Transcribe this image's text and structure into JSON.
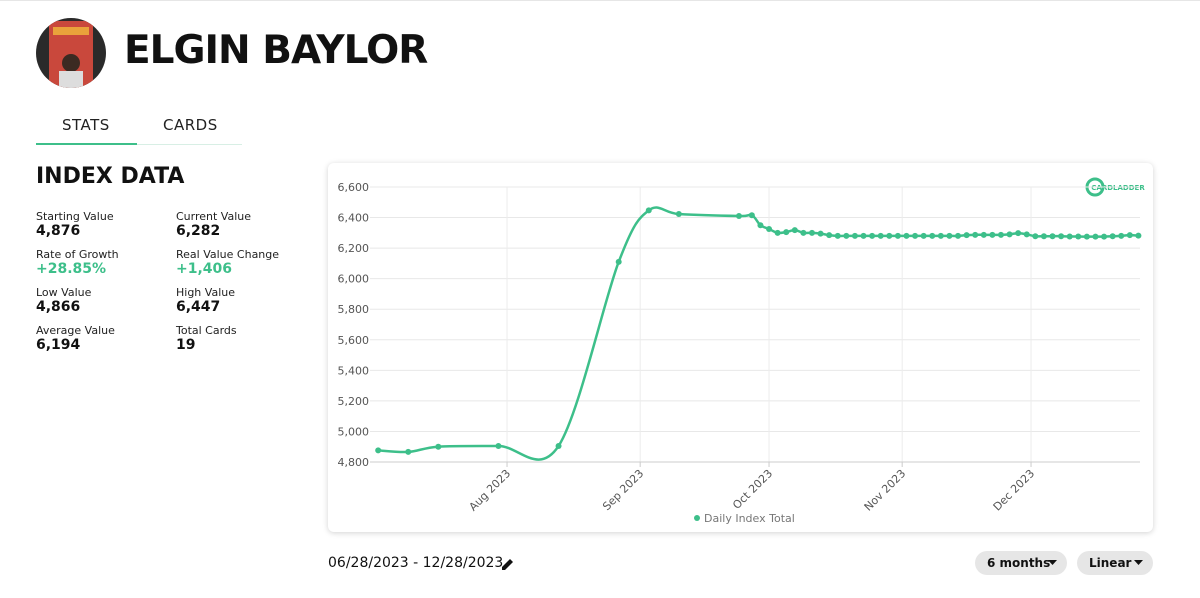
{
  "header": {
    "name": "ELGIN BAYLOR"
  },
  "tabs": [
    "STATS",
    "CARDS"
  ],
  "stats": {
    "title": "INDEX DATA",
    "items": [
      {
        "label": "Starting Value",
        "value": "4,876"
      },
      {
        "label": "Current Value",
        "value": "6,282"
      },
      {
        "label": "Rate of Growth",
        "value": "+28.85%"
      },
      {
        "label": "Real Value Change",
        "value": "+1,406"
      },
      {
        "label": "Low Value",
        "value": "4,866"
      },
      {
        "label": "High Value",
        "value": "6,447"
      },
      {
        "label": "Average Value",
        "value": "6,194"
      },
      {
        "label": "Total Cards",
        "value": "19"
      }
    ]
  },
  "brand": "CARDLADDER",
  "chart_data": {
    "type": "line",
    "x": [
      "2023-07-02",
      "2023-07-09",
      "2023-07-16",
      "2023-07-30",
      "2023-08-13",
      "2023-08-27",
      "2023-09-03",
      "2023-09-10",
      "2023-09-24",
      "2023-09-27",
      "2023-09-29",
      "2023-10-01",
      "2023-10-03",
      "2023-10-05",
      "2023-10-07",
      "2023-10-09",
      "2023-10-11",
      "2023-10-13",
      "2023-10-15",
      "2023-10-17",
      "2023-10-19",
      "2023-10-21",
      "2023-10-23",
      "2023-10-25",
      "2023-10-27",
      "2023-10-29",
      "2023-10-31",
      "2023-11-02",
      "2023-11-04",
      "2023-11-06",
      "2023-11-08",
      "2023-11-10",
      "2023-11-12",
      "2023-11-14",
      "2023-11-16",
      "2023-11-18",
      "2023-11-20",
      "2023-11-22",
      "2023-11-24",
      "2023-11-26",
      "2023-11-28",
      "2023-11-30",
      "2023-12-02",
      "2023-12-04",
      "2023-12-06",
      "2023-12-08",
      "2023-12-10",
      "2023-12-12",
      "2023-12-14",
      "2023-12-16",
      "2023-12-18",
      "2023-12-20",
      "2023-12-22",
      "2023-12-24",
      "2023-12-26"
    ],
    "series": [
      {
        "name": "Daily Index Total",
        "color": "#3dbf8a",
        "values": [
          4876,
          4866,
          4900,
          4905,
          4905,
          6110,
          6447,
          6423,
          6410,
          6415,
          6350,
          6325,
          6300,
          6305,
          6318,
          6300,
          6300,
          6295,
          6285,
          6280,
          6280,
          6280,
          6280,
          6280,
          6280,
          6280,
          6280,
          6280,
          6280,
          6280,
          6280,
          6280,
          6280,
          6280,
          6285,
          6287,
          6287,
          6287,
          6287,
          6290,
          6298,
          6290,
          6278,
          6278,
          6278,
          6278,
          6276,
          6276,
          6275,
          6275,
          6275,
          6278,
          6280,
          6285,
          6282
        ]
      }
    ],
    "xlim": [
      "2023-06-28",
      "2023-12-28"
    ],
    "xticks": [
      {
        "value": "2023-08-01",
        "label": "Aug 2023"
      },
      {
        "value": "2023-09-01",
        "label": "Sep 2023"
      },
      {
        "value": "2023-10-01",
        "label": "Oct 2023"
      },
      {
        "value": "2023-11-01",
        "label": "Nov 2023"
      },
      {
        "value": "2023-12-01",
        "label": "Dec 2023"
      }
    ],
    "ylim": [
      4800,
      6600
    ],
    "yticks": [
      {
        "value": 4800,
        "label": "4,800"
      },
      {
        "value": 5000,
        "label": "5,000"
      },
      {
        "value": 5200,
        "label": "5,200"
      },
      {
        "value": 5400,
        "label": "5,400"
      },
      {
        "value": 5600,
        "label": "5,600"
      },
      {
        "value": 5800,
        "label": "5,800"
      },
      {
        "value": 6000,
        "label": "6,000"
      },
      {
        "value": 6200,
        "label": "6,200"
      },
      {
        "value": 6400,
        "label": "6,400"
      },
      {
        "value": 6600,
        "label": "6,600"
      }
    ],
    "grid": true
  },
  "controls": {
    "date_range": "06/28/2023 - 12/28/2023",
    "period": "6 months",
    "scale": "Linear"
  }
}
